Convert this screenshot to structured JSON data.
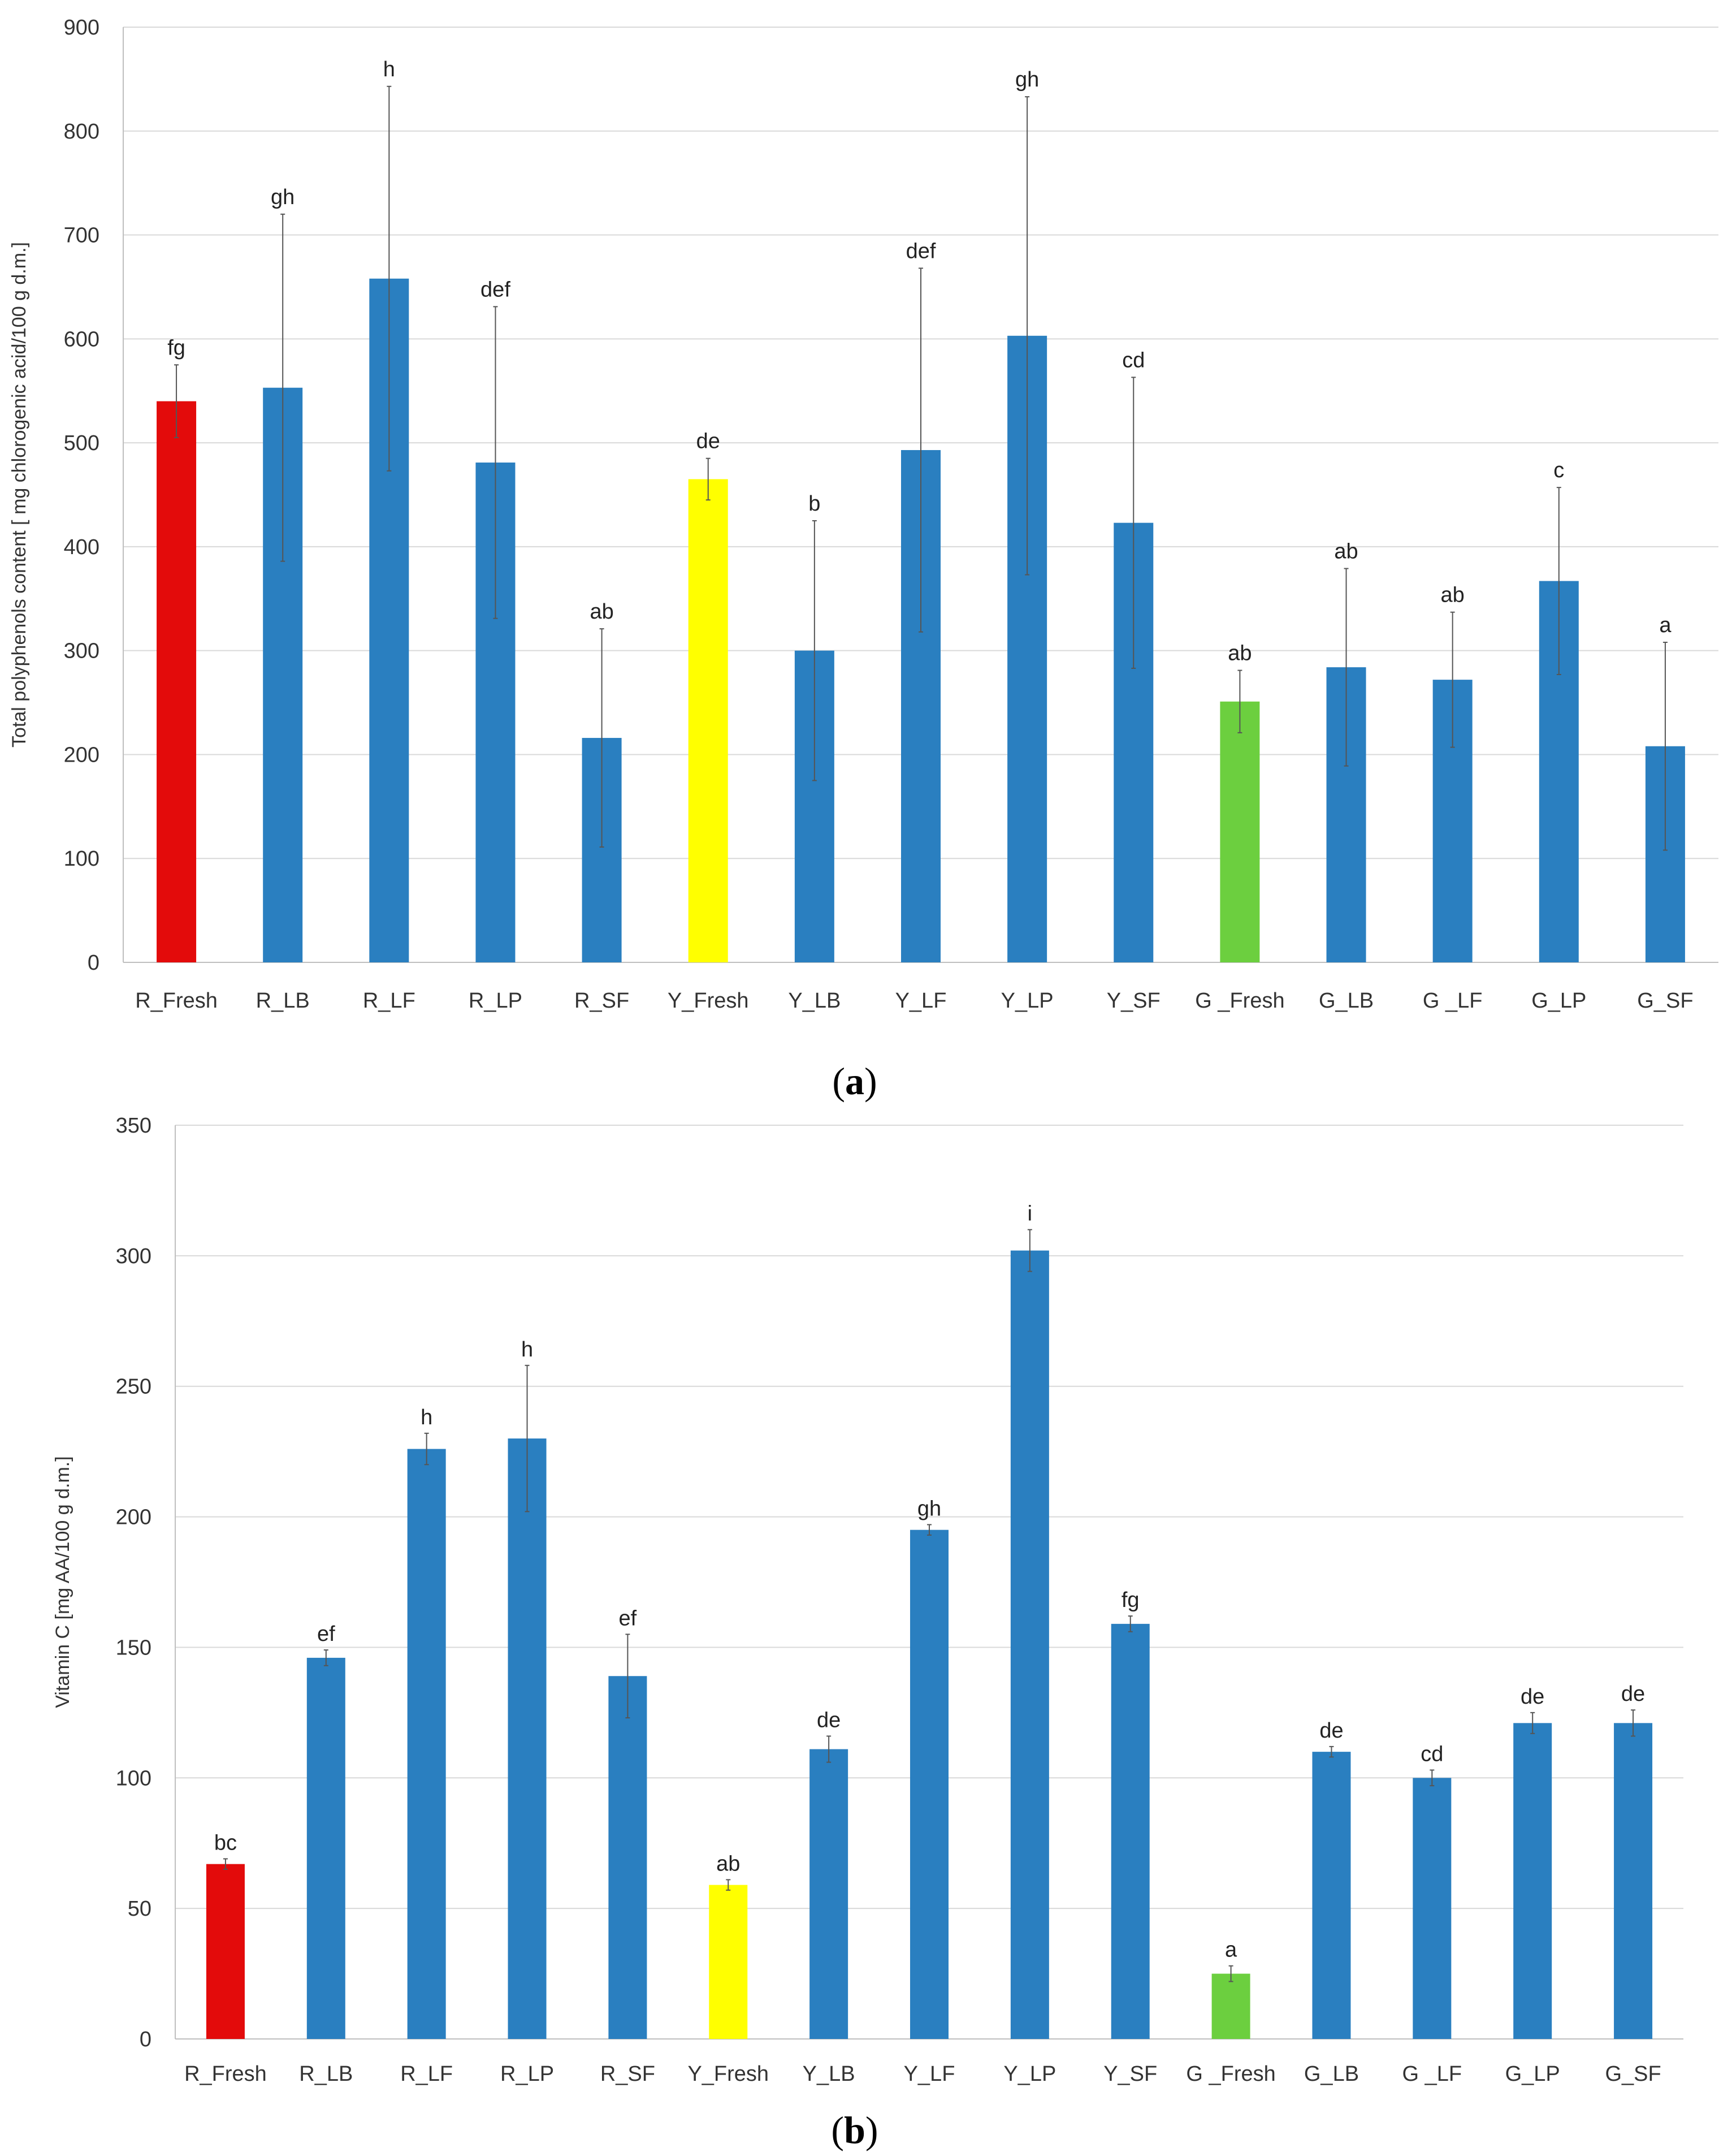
{
  "chart_data": [
    {
      "type": "bar",
      "panel_label": "a",
      "title": "",
      "xlabel": "",
      "ylabel": "Total polyphenols content [ mg chlorogenic acid/100 g d.m.]",
      "ylim": [
        0,
        900
      ],
      "yticks": [
        0,
        100,
        200,
        300,
        400,
        500,
        600,
        700,
        800,
        900
      ],
      "grid": true,
      "categories": [
        "R_Fresh",
        "R_LB",
        "R_LF",
        "R_LP",
        "R_SF",
        "Y_Fresh",
        "Y_LB",
        "Y_LF",
        "Y_LP",
        "Y_SF",
        "G _Fresh",
        "G_LB",
        "G _LF",
        "G_LP",
        "G_SF"
      ],
      "values": [
        540,
        553,
        658,
        481,
        216,
        465,
        300,
        493,
        603,
        423,
        251,
        284,
        272,
        367,
        208
      ],
      "errors": [
        35,
        167,
        185,
        150,
        105,
        20,
        125,
        175,
        230,
        140,
        30,
        95,
        65,
        90,
        100
      ],
      "letters": [
        "fg",
        "gh",
        "h",
        "def",
        "ab",
        "de",
        "b",
        "def",
        "gh",
        "cd",
        "ab",
        "ab",
        "ab",
        "c",
        "a"
      ],
      "colors": [
        "#e30b0b",
        "#2a7fc0",
        "#2a7fc0",
        "#2a7fc0",
        "#2a7fc0",
        "#ffff00",
        "#2a7fc0",
        "#2a7fc0",
        "#2a7fc0",
        "#2a7fc0",
        "#6ccf3f",
        "#2a7fc0",
        "#2a7fc0",
        "#2a7fc0",
        "#2a7fc0"
      ]
    },
    {
      "type": "bar",
      "panel_label": "b",
      "title": "",
      "xlabel": "",
      "ylabel": "Vitamin C [mg AA/100 g d.m.]",
      "ylim": [
        0,
        350
      ],
      "yticks": [
        0,
        50,
        100,
        150,
        200,
        250,
        300,
        350
      ],
      "grid": true,
      "categories": [
        "R_Fresh",
        "R_LB",
        "R_LF",
        "R_LP",
        "R_SF",
        "Y_Fresh",
        "Y_LB",
        "Y_LF",
        "Y_LP",
        "Y_SF",
        "G _Fresh",
        "G_LB",
        "G _LF",
        "G_LP",
        "G_SF"
      ],
      "values": [
        67,
        146,
        226,
        230,
        139,
        59,
        111,
        195,
        302,
        159,
        25,
        110,
        100,
        121,
        121
      ],
      "errors": [
        2,
        3,
        6,
        28,
        16,
        2,
        5,
        2,
        8,
        3,
        3,
        2,
        3,
        4,
        5
      ],
      "letters": [
        "bc",
        "ef",
        "h",
        "h",
        "ef",
        "ab",
        "de",
        "gh",
        "i",
        "fg",
        "a",
        "de",
        "cd",
        "de",
        "de"
      ],
      "colors": [
        "#e30b0b",
        "#2a7fc0",
        "#2a7fc0",
        "#2a7fc0",
        "#2a7fc0",
        "#ffff00",
        "#2a7fc0",
        "#2a7fc0",
        "#2a7fc0",
        "#2a7fc0",
        "#6ccf3f",
        "#2a7fc0",
        "#2a7fc0",
        "#2a7fc0",
        "#2a7fc0"
      ]
    }
  ]
}
